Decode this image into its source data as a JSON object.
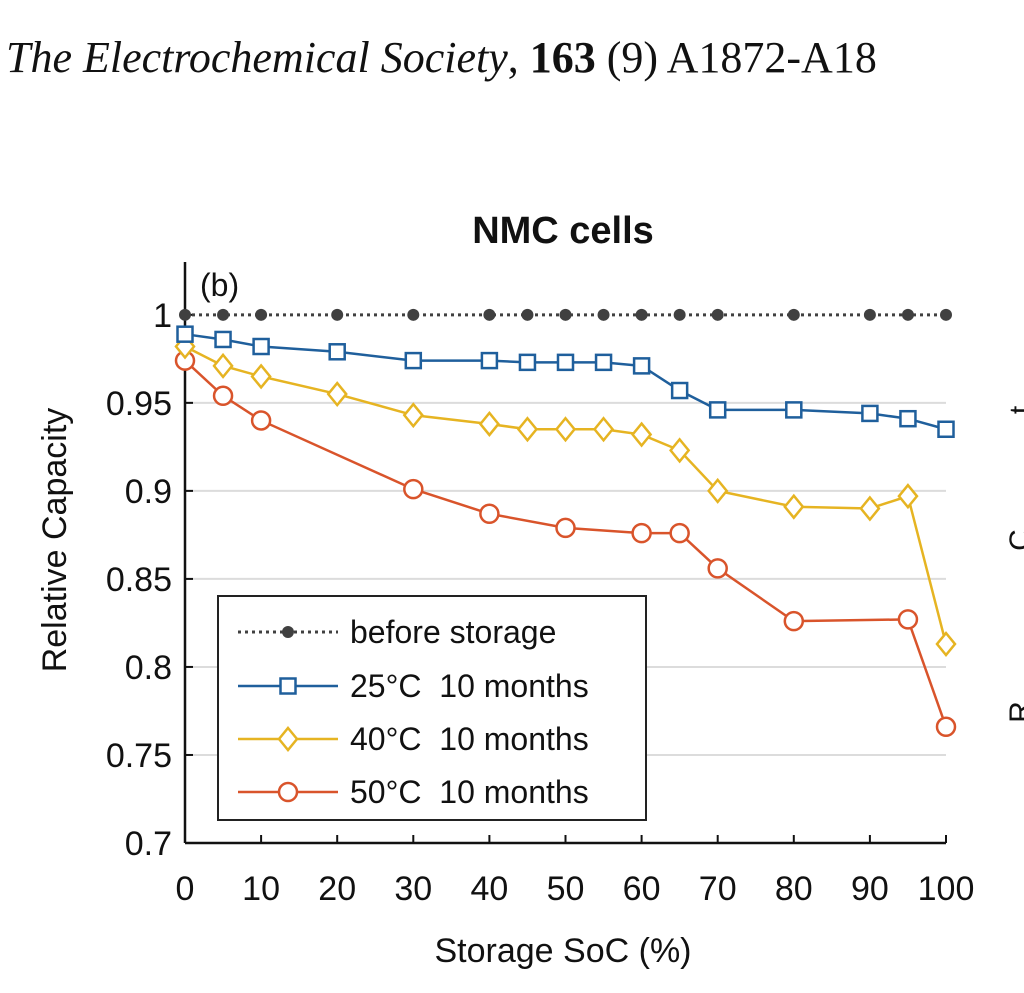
{
  "header": {
    "journal": "The Electrochemical Society",
    "sep": ", ",
    "volume": "163",
    "issue_pages": " (9) A1872-A18"
  },
  "colors": {
    "before": "#404040",
    "t25": "#1f5f9c",
    "t40": "#e6b422",
    "t50": "#d9542b",
    "grid": "#dcdcdc",
    "axis": "#111111"
  },
  "chart_data": {
    "type": "line",
    "title": "NMC cells",
    "panel_label": "(b)",
    "xlabel": "Storage SoC (%)",
    "ylabel": "Relative Capacity",
    "xlim": [
      0,
      100
    ],
    "ylim": [
      0.7,
      1.03
    ],
    "xticks": [
      0,
      10,
      20,
      30,
      40,
      50,
      60,
      70,
      80,
      90,
      100
    ],
    "xtick_labels": [
      "0",
      "10",
      "20",
      "30",
      "40",
      "50",
      "60",
      "70",
      "80",
      "90",
      "100"
    ],
    "yticks": [
      0.7,
      0.75,
      0.8,
      0.85,
      0.9,
      0.95,
      1
    ],
    "ytick_labels": [
      "0.7",
      "0.75",
      "0.8",
      "0.85",
      "0.9",
      "0.95",
      "1"
    ],
    "grid": "horizontal",
    "legend_position": "bottom-left",
    "series": [
      {
        "name": "before storage",
        "marker": "dot",
        "line": "dotted",
        "color_key": "before",
        "x": [
          0,
          5,
          10,
          20,
          30,
          40,
          45,
          50,
          55,
          60,
          65,
          70,
          80,
          90,
          95,
          100
        ],
        "y": [
          1,
          1,
          1,
          1,
          1,
          1,
          1,
          1,
          1,
          1,
          1,
          1,
          1,
          1,
          1,
          1
        ]
      },
      {
        "name": "25°C  10 months",
        "marker": "square",
        "line": "solid",
        "color_key": "t25",
        "x": [
          0,
          5,
          10,
          20,
          30,
          40,
          45,
          50,
          55,
          60,
          65,
          70,
          80,
          90,
          95,
          100
        ],
        "y": [
          0.989,
          0.986,
          0.982,
          0.979,
          0.974,
          0.974,
          0.973,
          0.973,
          0.973,
          0.971,
          0.957,
          0.946,
          0.946,
          0.944,
          0.941,
          0.935
        ]
      },
      {
        "name": "40°C  10 months",
        "marker": "diamond",
        "line": "solid",
        "color_key": "t40",
        "x": [
          0,
          5,
          10,
          20,
          30,
          40,
          45,
          50,
          55,
          60,
          65,
          70,
          80,
          90,
          95,
          100
        ],
        "y": [
          0.982,
          0.971,
          0.965,
          0.955,
          0.943,
          0.938,
          0.935,
          0.935,
          0.935,
          0.932,
          0.923,
          0.9,
          0.891,
          0.89,
          0.897,
          0.813
        ]
      },
      {
        "name": "50°C  10 months",
        "marker": "circle",
        "line": "solid",
        "color_key": "t50",
        "x": [
          0,
          5,
          10,
          20,
          30,
          40,
          50,
          60,
          65,
          70,
          80,
          95,
          100
        ],
        "y": [
          0.974,
          0.954,
          0.94,
          null,
          0.901,
          0.887,
          0.879,
          0.876,
          0.876,
          0.856,
          0.826,
          0.827,
          0.766
        ]
      }
    ]
  }
}
